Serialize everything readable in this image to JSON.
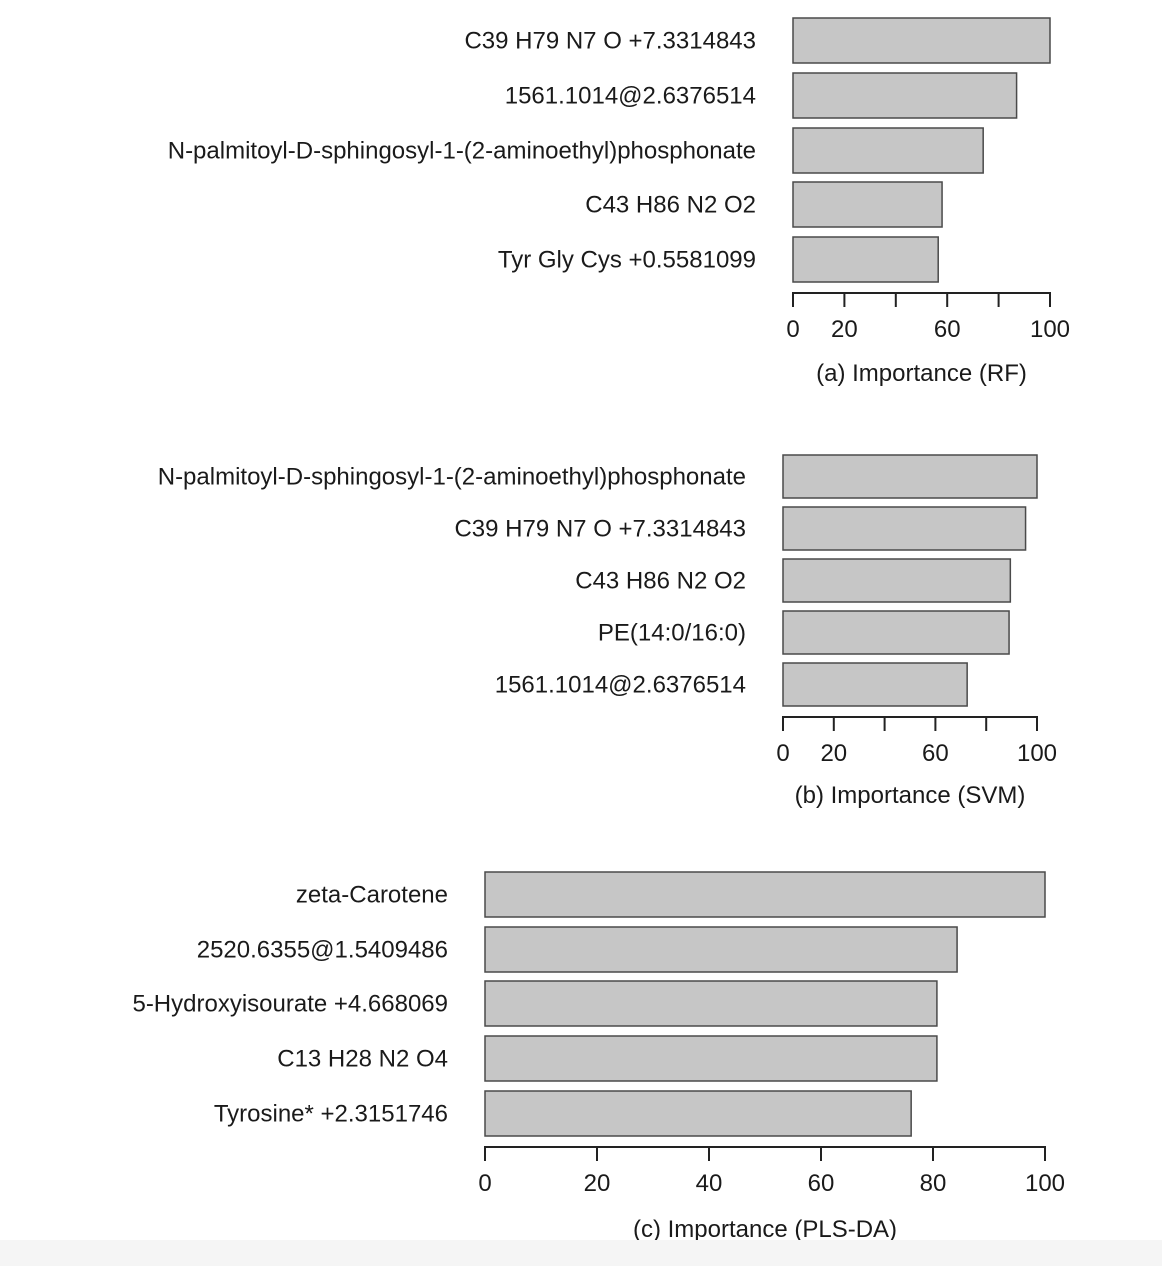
{
  "chart_data": [
    {
      "type": "bar",
      "orientation": "horizontal",
      "xlabel": "(a) Importance (RF)",
      "categories": [
        "C39 H79 N7 O +7.3314843",
        "1561.1014@2.6376514",
        "N-palmitoyl-D-sphingosyl-1-(2-aminoethyl)phosphonate",
        "C43 H86 N2 O2",
        "Tyr Gly Cys +0.5581099"
      ],
      "values": [
        100,
        87,
        74,
        58,
        56.5
      ],
      "xlim": [
        0,
        100
      ],
      "ticks": [
        0,
        20,
        40,
        60,
        80,
        100
      ],
      "tick_labels": [
        "0",
        "20",
        "",
        "60",
        "",
        "100"
      ],
      "bar_color": "#c6c6c6",
      "grid": false
    },
    {
      "type": "bar",
      "orientation": "horizontal",
      "xlabel": "(b) Importance (SVM)",
      "categories": [
        "N-palmitoyl-D-sphingosyl-1-(2-aminoethyl)phosphonate",
        "C39 H79 N7 O +7.3314843",
        "C43 H86 N2 O2",
        "PE(14:0/16:0)",
        "1561.1014@2.6376514"
      ],
      "values": [
        100,
        95.5,
        89.5,
        89,
        72.5
      ],
      "xlim": [
        0,
        100
      ],
      "ticks": [
        0,
        20,
        40,
        60,
        80,
        100
      ],
      "tick_labels": [
        "0",
        "20",
        "",
        "60",
        "",
        "100"
      ],
      "bar_color": "#c6c6c6",
      "grid": false
    },
    {
      "type": "bar",
      "orientation": "horizontal",
      "xlabel": "(c) Importance (PLS-DA)",
      "categories": [
        "zeta-Carotene",
        "2520.6355@1.5409486",
        "5-Hydroxyisourate +4.668069",
        "C13 H28 N2 O4",
        "Tyrosine* +2.3151746"
      ],
      "values": [
        100,
        84.3,
        80.7,
        80.7,
        76.1
      ],
      "xlim": [
        0,
        100
      ],
      "ticks": [
        0,
        20,
        40,
        60,
        80,
        100
      ],
      "tick_labels": [
        "0",
        "20",
        "40",
        "60",
        "80",
        "100"
      ],
      "bar_color": "#c6c6c6",
      "grid": false
    }
  ]
}
